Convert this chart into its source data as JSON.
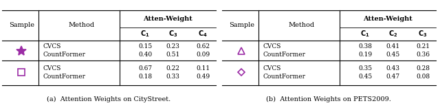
{
  "table_a": {
    "caption": "(a)  Attention Weights on CityStreet.",
    "header_top": "Atten-Weight",
    "header_cols": [
      "$\\mathbf{C_1}$",
      "$\\mathbf{C_3}$",
      "$\\mathbf{C_4}$"
    ],
    "rows": [
      {
        "method": "CVCS",
        "values": [
          "0.15",
          "0.23",
          "0.62"
        ]
      },
      {
        "method": "CountFormer",
        "values": [
          "0.40",
          "0.51",
          "0.09"
        ]
      },
      {
        "method": "CVCS",
        "values": [
          "0.67",
          "0.22",
          "0.11"
        ]
      },
      {
        "method": "CountFormer",
        "values": [
          "0.18",
          "0.33",
          "0.49"
        ]
      }
    ],
    "symbols": [
      {
        "rows": [
          0,
          1
        ],
        "marker": "*",
        "color": "#9B2CA5",
        "size": 10,
        "filled": true
      },
      {
        "rows": [
          2,
          3
        ],
        "marker": "s",
        "color": "#9B2CA5",
        "size": 7,
        "filled": false
      }
    ]
  },
  "table_b": {
    "caption": "(b)  Attention Weights on PETS2009.",
    "header_top": "Atten-Weight",
    "header_cols": [
      "$\\mathbf{C_1}$",
      "$\\mathbf{C_2}$",
      "$\\mathbf{C_3}$"
    ],
    "rows": [
      {
        "method": "CVCS",
        "values": [
          "0.38",
          "0.41",
          "0.21"
        ]
      },
      {
        "method": "CountFormer",
        "values": [
          "0.19",
          "0.45",
          "0.36"
        ]
      },
      {
        "method": "CVCS",
        "values": [
          "0.35",
          "0.43",
          "0.28"
        ]
      },
      {
        "method": "CountFormer",
        "values": [
          "0.45",
          "0.47",
          "0.08"
        ]
      }
    ],
    "symbols": [
      {
        "rows": [
          0,
          1
        ],
        "marker": "^",
        "color": "#9B2CA5",
        "size": 7,
        "filled": false
      },
      {
        "rows": [
          2,
          3
        ],
        "marker": "D",
        "color": "#9B2CA5",
        "size": 5,
        "filled": false
      }
    ]
  },
  "bg_color": "#ffffff",
  "text_color": "#000000",
  "line_color": "#000000",
  "font_size": 7.0,
  "caption_font_size": 7.0
}
